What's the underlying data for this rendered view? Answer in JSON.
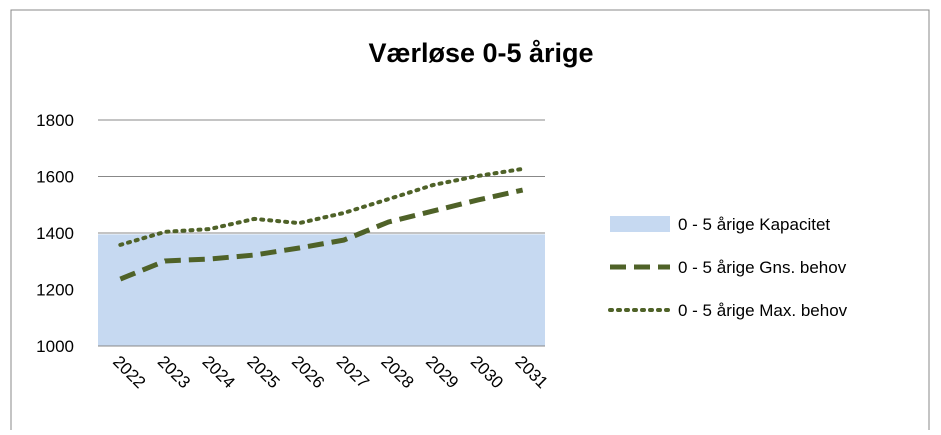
{
  "chart_data": {
    "type": "area-line",
    "title": "Værløse 0-5 årige",
    "categories": [
      "2022",
      "2023",
      "2024",
      "2025",
      "2026",
      "2027",
      "2028",
      "2029",
      "2030",
      "2031"
    ],
    "series": [
      {
        "name": "0 - 5 årige Kapacitet",
        "kind": "area",
        "color": "#c6d9f1",
        "values": [
          1395,
          1395,
          1395,
          1395,
          1395,
          1395,
          1395,
          1395,
          1395,
          1395
        ]
      },
      {
        "name": "0 - 5 årige Gns. behov",
        "kind": "dashed",
        "color": "#4f6228",
        "values": [
          1237,
          1301,
          1308,
          1322,
          1347,
          1375,
          1439,
          1478,
          1517,
          1552
        ]
      },
      {
        "name": "0 - 5 årige Max. behov",
        "kind": "dotted",
        "color": "#4f6228",
        "values": [
          1358,
          1404,
          1414,
          1450,
          1435,
          1471,
          1520,
          1570,
          1602,
          1627
        ]
      }
    ],
    "ylim": [
      1000,
      1800
    ],
    "yticks": [
      1000,
      1200,
      1400,
      1600,
      1800
    ],
    "grid": true
  }
}
